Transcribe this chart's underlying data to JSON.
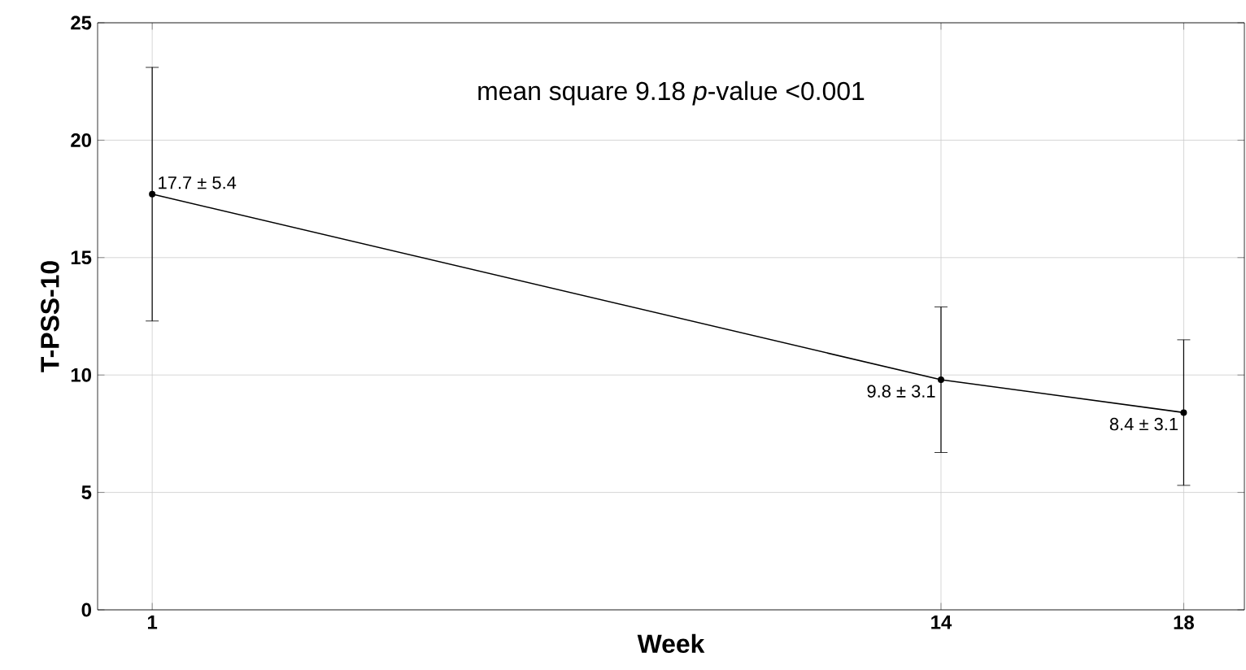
{
  "chart_data": {
    "type": "line",
    "xlabel": "Week",
    "ylabel": "T-PSS-10",
    "annotations": [
      "mean square 9.18 *p*-value <0.001"
    ],
    "x": [
      1,
      14,
      18
    ],
    "series": [
      {
        "color": "#000000",
        "values": [
          17.7,
          9.8,
          8.4
        ],
        "errors": [
          5.4,
          3.1,
          3.1
        ],
        "value_labels": [
          "17.7 ± 5.4",
          "9.8 ± 3.1",
          "8.4 ± 3.1"
        ]
      }
    ],
    "xlim": [
      0.1,
      19
    ],
    "xticks": [
      1,
      14,
      18
    ],
    "ylim": [
      0,
      25
    ],
    "yticks": [
      0,
      5,
      10,
      15,
      20,
      25
    ],
    "grid": true,
    "marker": "circle",
    "line_style": "solid"
  }
}
